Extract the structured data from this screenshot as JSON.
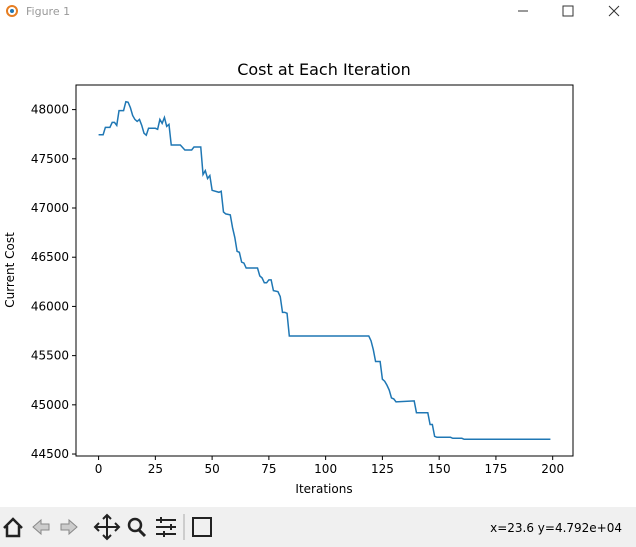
{
  "window": {
    "title": "Figure 1"
  },
  "chart_data": {
    "type": "line",
    "title": "Cost at Each Iteration",
    "x_label": "Iterations",
    "y_label": "Current Cost",
    "xlim": [
      -9.95,
      208.95
    ],
    "ylim": [
      44480,
      48250
    ],
    "xticks": [
      0,
      25,
      50,
      75,
      100,
      125,
      150,
      175,
      200
    ],
    "yticks": [
      44500,
      45000,
      45500,
      46000,
      46500,
      47000,
      47500,
      48000
    ],
    "grid": false,
    "series": [
      {
        "color": "#1f77b4",
        "x": [
          0,
          2,
          3,
          5,
          6,
          7,
          8,
          9,
          11,
          12,
          13,
          14,
          15,
          16,
          17,
          18,
          19,
          20,
          21,
          22,
          25,
          26,
          27,
          28,
          29,
          30,
          31,
          32,
          36,
          38,
          41,
          42,
          45,
          46,
          47,
          48,
          49,
          50,
          53,
          54,
          55,
          56,
          58,
          59,
          60,
          61,
          62,
          63,
          64,
          65,
          70,
          71,
          72,
          73,
          74,
          75,
          76,
          77,
          79,
          80,
          81,
          82,
          83,
          84,
          119,
          120,
          121,
          122,
          124,
          125,
          126,
          127,
          128,
          129,
          130,
          131,
          139,
          140,
          145,
          146,
          147,
          148,
          149,
          155,
          156,
          160,
          161,
          199
        ],
        "values": [
          47745,
          47745,
          47820,
          47820,
          47870,
          47870,
          47840,
          47990,
          47990,
          48080,
          48075,
          48020,
          47940,
          47900,
          47880,
          47900,
          47840,
          47760,
          47740,
          47810,
          47810,
          47800,
          47900,
          47860,
          47920,
          47830,
          47850,
          47640,
          47640,
          47590,
          47590,
          47620,
          47620,
          47340,
          47380,
          47300,
          47330,
          47180,
          47160,
          47170,
          46960,
          46940,
          46930,
          46800,
          46700,
          46560,
          46550,
          46450,
          46440,
          46390,
          46390,
          46310,
          46290,
          46240,
          46240,
          46270,
          46270,
          46160,
          46150,
          46100,
          45940,
          45940,
          45930,
          45700,
          45700,
          45650,
          45560,
          45440,
          45440,
          45260,
          45240,
          45200,
          45150,
          45070,
          45060,
          45030,
          45040,
          44920,
          44920,
          44800,
          44800,
          44680,
          44670,
          44670,
          44660,
          44660,
          44650,
          44650
        ]
      }
    ]
  },
  "status": "x=23.6 y=4.792e+04"
}
